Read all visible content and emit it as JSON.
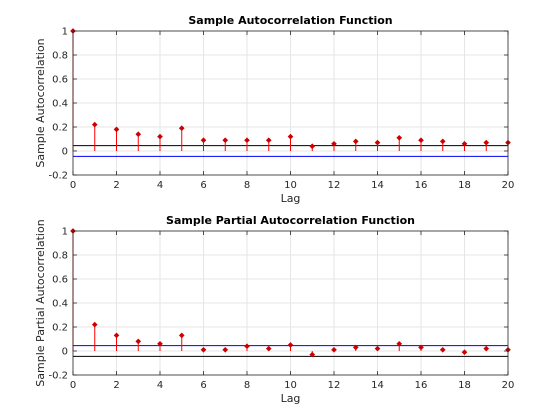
{
  "chart_data": [
    {
      "type": "stem",
      "title": "Sample Autocorrelation Function",
      "xlabel": "Lag",
      "ylabel": "Sample Autocorrelation",
      "xlim": [
        0,
        20
      ],
      "ylim": [
        -0.2,
        1
      ],
      "xticks": [
        "0",
        "2",
        "4",
        "6",
        "8",
        "10",
        "12",
        "14",
        "16",
        "18",
        "20"
      ],
      "yticks": [
        "-0.2",
        "0",
        "0.2",
        "0.4",
        "0.6",
        "0.8",
        "1"
      ],
      "grid": true,
      "x": [
        0,
        1,
        2,
        3,
        4,
        5,
        6,
        7,
        8,
        9,
        10,
        11,
        12,
        13,
        14,
        15,
        16,
        17,
        18,
        19,
        20
      ],
      "values": [
        1.0,
        0.22,
        0.18,
        0.14,
        0.12,
        0.19,
        0.09,
        0.09,
        0.09,
        0.09,
        0.12,
        0.04,
        0.06,
        0.08,
        0.07,
        0.11,
        0.09,
        0.08,
        0.06,
        0.07,
        0.07
      ],
      "confidence_bounds": [
        0.045,
        -0.045
      ],
      "colors": {
        "stem": "#ff0000",
        "marker": "#cc0000",
        "bound_upper": "#000000",
        "bound_lower": "#0000ff"
      }
    },
    {
      "type": "stem",
      "title": "Sample Partial Autocorrelation Function",
      "xlabel": "Lag",
      "ylabel": "Sample Partial Autocorrelation",
      "xlim": [
        0,
        20
      ],
      "ylim": [
        -0.2,
        1
      ],
      "xticks": [
        "0",
        "2",
        "4",
        "6",
        "8",
        "10",
        "12",
        "14",
        "16",
        "18",
        "20"
      ],
      "yticks": [
        "-0.2",
        "0",
        "0.2",
        "0.4",
        "0.6",
        "0.8",
        "1"
      ],
      "grid": true,
      "x": [
        0,
        1,
        2,
        3,
        4,
        5,
        6,
        7,
        8,
        9,
        10,
        11,
        12,
        13,
        14,
        15,
        16,
        17,
        18,
        19,
        20
      ],
      "values": [
        1.0,
        0.22,
        0.13,
        0.08,
        0.06,
        0.13,
        0.01,
        0.01,
        0.04,
        0.02,
        0.05,
        -0.03,
        0.01,
        0.03,
        0.02,
        0.06,
        0.03,
        0.01,
        -0.01,
        0.02,
        0.01
      ],
      "confidence_bounds": [
        0.045,
        -0.045
      ],
      "colors": {
        "stem": "#ff0000",
        "marker": "#cc0000",
        "bound_upper": "#0000ff",
        "bound_lower": "#000000"
      }
    }
  ]
}
